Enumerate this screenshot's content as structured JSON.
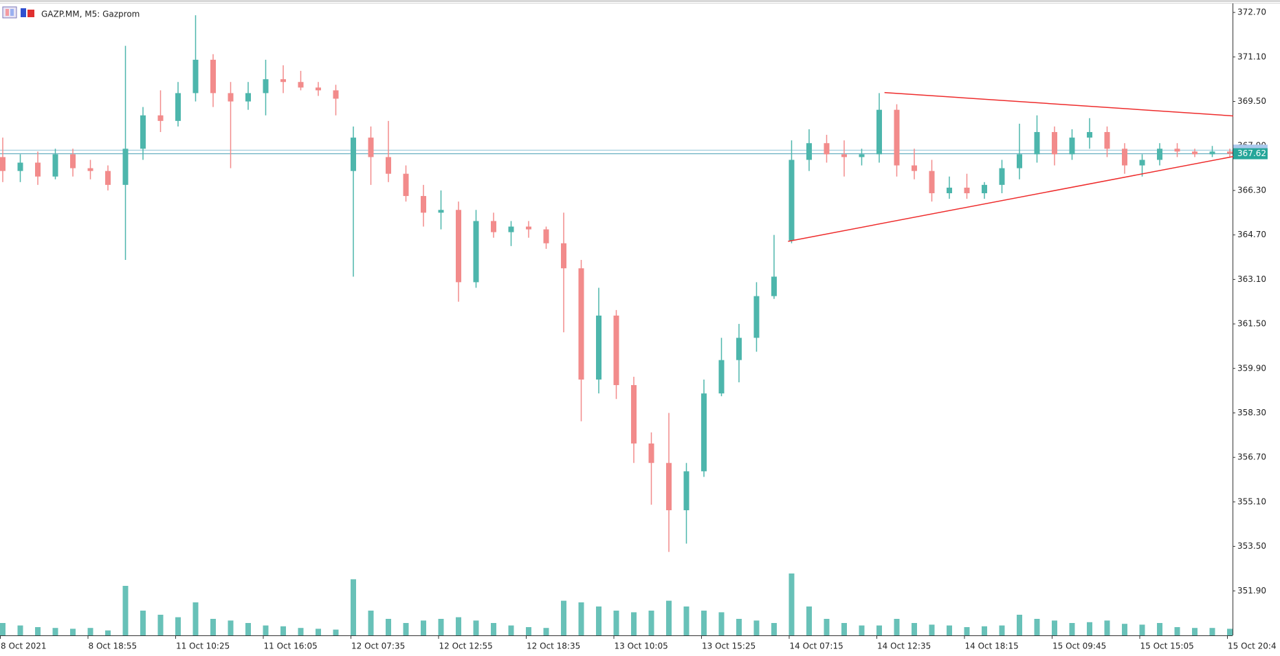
{
  "chart_data": {
    "type": "candlestick",
    "title": "GAZP.MM, M5:  Gazprom",
    "bull_color": "#4db6ac",
    "bear_color": "#f28b8b",
    "volume_color": "#4db6ac",
    "ylim": [
      350.3,
      373.0
    ],
    "yticks": [
      {
        "value": 372.7,
        "label": "372.70"
      },
      {
        "value": 371.1,
        "label": "371.10"
      },
      {
        "value": 369.5,
        "label": "369.50"
      },
      {
        "value": 367.9,
        "label": "367.90"
      },
      {
        "value": 366.3,
        "label": "366.30"
      },
      {
        "value": 364.7,
        "label": "364.70"
      },
      {
        "value": 363.1,
        "label": "363.10"
      },
      {
        "value": 361.5,
        "label": "361.50"
      },
      {
        "value": 359.9,
        "label": "359.90"
      },
      {
        "value": 358.3,
        "label": "358.30"
      },
      {
        "value": 356.7,
        "label": "356.70"
      },
      {
        "value": 355.1,
        "label": "355.10"
      },
      {
        "value": 353.5,
        "label": "353.50"
      },
      {
        "value": 351.9,
        "label": "351.90"
      }
    ],
    "categories": [
      "8 Oct 2021",
      null,
      null,
      null,
      null,
      "8 Oct 18:55",
      null,
      null,
      null,
      null,
      "11 Oct 10:25",
      null,
      null,
      null,
      null,
      "11 Oct 16:05",
      null,
      null,
      null,
      null,
      "12 Oct 07:35",
      null,
      null,
      null,
      null,
      "12 Oct 12:55",
      null,
      null,
      null,
      null,
      "12 Oct 18:35",
      null,
      null,
      null,
      null,
      "13 Oct 10:05",
      null,
      null,
      null,
      null,
      "13 Oct 15:25",
      null,
      null,
      null,
      null,
      "14 Oct 07:15",
      null,
      null,
      null,
      null,
      "14 Oct 12:35",
      null,
      null,
      null,
      null,
      "14 Oct 18:15",
      null,
      null,
      null,
      null,
      "15 Oct 09:45",
      null,
      null,
      null,
      null,
      "15 Oct 15:05",
      null,
      null,
      null,
      null,
      "15 Oct 20:4"
    ],
    "candles": [
      [
        367.5,
        368.2,
        366.6,
        367.0
      ],
      [
        367.0,
        367.6,
        366.6,
        367.3
      ],
      [
        367.3,
        367.7,
        366.5,
        366.8
      ],
      [
        366.8,
        367.8,
        366.7,
        367.6
      ],
      [
        367.6,
        367.8,
        366.8,
        367.1
      ],
      [
        367.1,
        367.4,
        366.7,
        367.0
      ],
      [
        367.0,
        367.2,
        366.3,
        366.5
      ],
      [
        366.5,
        371.5,
        363.8,
        367.8
      ],
      [
        367.8,
        369.3,
        367.4,
        369.0
      ],
      [
        369.0,
        369.9,
        368.4,
        368.8
      ],
      [
        368.8,
        370.2,
        368.6,
        369.8
      ],
      [
        369.8,
        372.6,
        369.5,
        371.0
      ],
      [
        371.0,
        371.2,
        369.3,
        369.8
      ],
      [
        369.8,
        370.2,
        367.1,
        369.5
      ],
      [
        369.5,
        370.2,
        369.2,
        369.8
      ],
      [
        369.8,
        371.0,
        369.0,
        370.3
      ],
      [
        370.3,
        370.8,
        369.8,
        370.2
      ],
      [
        370.2,
        370.6,
        369.9,
        370.0
      ],
      [
        370.0,
        370.2,
        369.7,
        369.9
      ],
      [
        369.9,
        370.1,
        369.0,
        369.6
      ],
      [
        367.0,
        368.6,
        363.2,
        368.2
      ],
      [
        368.2,
        368.6,
        366.5,
        367.5
      ],
      [
        367.5,
        368.8,
        366.6,
        366.9
      ],
      [
        366.9,
        367.2,
        365.9,
        366.1
      ],
      [
        366.1,
        366.5,
        365.0,
        365.5
      ],
      [
        365.5,
        366.3,
        364.9,
        365.6
      ],
      [
        365.6,
        365.9,
        362.3,
        363.0
      ],
      [
        363.0,
        365.6,
        362.8,
        365.2
      ],
      [
        365.2,
        365.5,
        364.6,
        364.8
      ],
      [
        364.8,
        365.2,
        364.3,
        365.0
      ],
      [
        365.0,
        365.2,
        364.6,
        364.9
      ],
      [
        364.9,
        365.0,
        364.2,
        364.4
      ],
      [
        364.4,
        365.5,
        361.2,
        363.5
      ],
      [
        363.5,
        363.8,
        358.0,
        359.5
      ],
      [
        359.5,
        362.8,
        359.0,
        361.8
      ],
      [
        361.8,
        362.0,
        358.8,
        359.3
      ],
      [
        359.3,
        359.6,
        356.5,
        357.2
      ],
      [
        357.2,
        357.6,
        355.0,
        356.5
      ],
      [
        356.5,
        358.3,
        353.3,
        354.8
      ],
      [
        354.8,
        356.5,
        353.6,
        356.2
      ],
      [
        356.2,
        359.5,
        356.0,
        359.0
      ],
      [
        359.0,
        361.0,
        358.9,
        360.2
      ],
      [
        360.2,
        361.5,
        359.4,
        361.0
      ],
      [
        361.0,
        363.0,
        360.5,
        362.5
      ],
      [
        362.5,
        364.7,
        362.4,
        363.2
      ],
      [
        364.5,
        368.1,
        364.4,
        367.4
      ],
      [
        367.4,
        368.5,
        367.0,
        368.0
      ],
      [
        368.0,
        368.3,
        367.3,
        367.6
      ],
      [
        367.6,
        368.1,
        366.8,
        367.5
      ],
      [
        367.5,
        367.8,
        367.2,
        367.6
      ],
      [
        367.6,
        369.8,
        367.3,
        369.2
      ],
      [
        369.2,
        369.4,
        366.8,
        367.2
      ],
      [
        367.2,
        367.8,
        366.7,
        367.0
      ],
      [
        367.0,
        367.4,
        365.9,
        366.2
      ],
      [
        366.2,
        366.8,
        366.0,
        366.4
      ],
      [
        366.4,
        366.9,
        366.0,
        366.2
      ],
      [
        366.2,
        366.6,
        366.0,
        366.5
      ],
      [
        366.5,
        367.4,
        366.2,
        367.1
      ],
      [
        367.1,
        368.7,
        366.7,
        367.6
      ],
      [
        367.6,
        369.0,
        367.3,
        368.4
      ],
      [
        368.4,
        368.6,
        367.2,
        367.6
      ],
      [
        367.6,
        368.5,
        367.4,
        368.2
      ],
      [
        368.2,
        368.9,
        367.8,
        368.4
      ],
      [
        368.4,
        368.6,
        367.5,
        367.8
      ],
      [
        367.8,
        368.0,
        366.9,
        367.2
      ],
      [
        367.2,
        367.6,
        366.8,
        367.4
      ],
      [
        367.4,
        368.0,
        367.2,
        367.8
      ],
      [
        367.8,
        368.0,
        367.5,
        367.7
      ],
      [
        367.7,
        367.8,
        367.5,
        367.6
      ],
      [
        367.6,
        367.9,
        367.5,
        367.7
      ],
      [
        367.7,
        367.8,
        367.5,
        367.62
      ]
    ],
    "volumes": [
      150,
      120,
      100,
      90,
      80,
      90,
      60,
      600,
      300,
      250,
      220,
      400,
      200,
      180,
      150,
      120,
      110,
      90,
      80,
      70,
      680,
      300,
      200,
      150,
      180,
      200,
      220,
      180,
      150,
      120,
      100,
      90,
      420,
      400,
      350,
      300,
      280,
      300,
      420,
      350,
      300,
      280,
      200,
      180,
      150,
      750,
      350,
      200,
      150,
      120,
      120,
      200,
      150,
      130,
      120,
      100,
      110,
      120,
      250,
      200,
      180,
      150,
      160,
      180,
      140,
      130,
      150,
      100,
      90,
      90,
      80
    ],
    "last_price": 367.62,
    "ask_price": 367.75,
    "trendlines": [
      {
        "points": [
          [
            50.3,
            369.82
          ],
          [
            70.2,
            368.98
          ]
        ],
        "color": "#ee2b2b"
      },
      {
        "points": [
          [
            44.8,
            364.47
          ],
          [
            70.2,
            367.52
          ]
        ],
        "color": "#ee2b2b"
      }
    ]
  }
}
